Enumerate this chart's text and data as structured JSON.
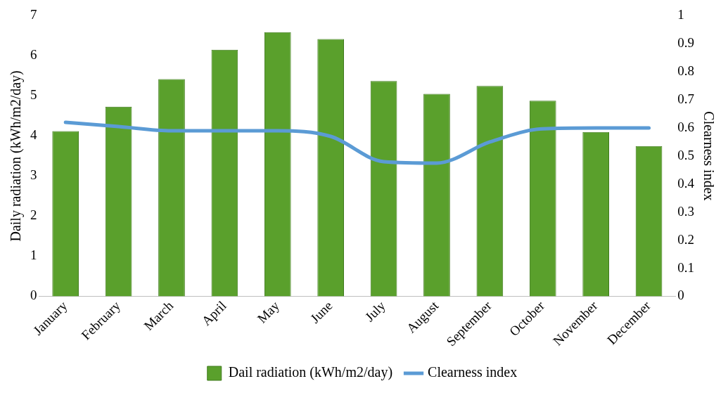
{
  "chart_data": {
    "type": "bar",
    "categories": [
      "January",
      "February",
      "March",
      "April",
      "May",
      "June",
      "July",
      "August",
      "September",
      "October",
      "November",
      "December"
    ],
    "series": [
      {
        "name": "Dail radiation (kWh/m2/day)",
        "color": "#5aa02c",
        "values": [
          4.12,
          4.73,
          5.42,
          6.15,
          6.59,
          6.42,
          5.37,
          5.05,
          5.25,
          4.88,
          4.1,
          3.75
        ]
      },
      {
        "name": "Clearness index",
        "type": "line",
        "axis": "y2",
        "color": "#5b9bd5",
        "values": [
          0.62,
          0.605,
          0.59,
          0.59,
          0.59,
          0.57,
          0.48,
          0.475,
          0.55,
          0.597,
          0.6,
          0.6
        ]
      }
    ],
    "ylabel": "Daily radiation (kWh/m2/day)",
    "y2label": "Clearness index",
    "ylim": [
      0,
      7
    ],
    "yticks": [
      0,
      1,
      2,
      3,
      4,
      5,
      6,
      7
    ],
    "y2lim": [
      0,
      1
    ],
    "y2ticks": [
      0,
      0.1,
      0.2,
      0.3,
      0.4,
      0.5,
      0.6,
      0.7,
      0.8,
      0.9,
      1
    ],
    "grid": false,
    "legend": "bottom",
    "marker": "none",
    "line_style": "solid"
  }
}
